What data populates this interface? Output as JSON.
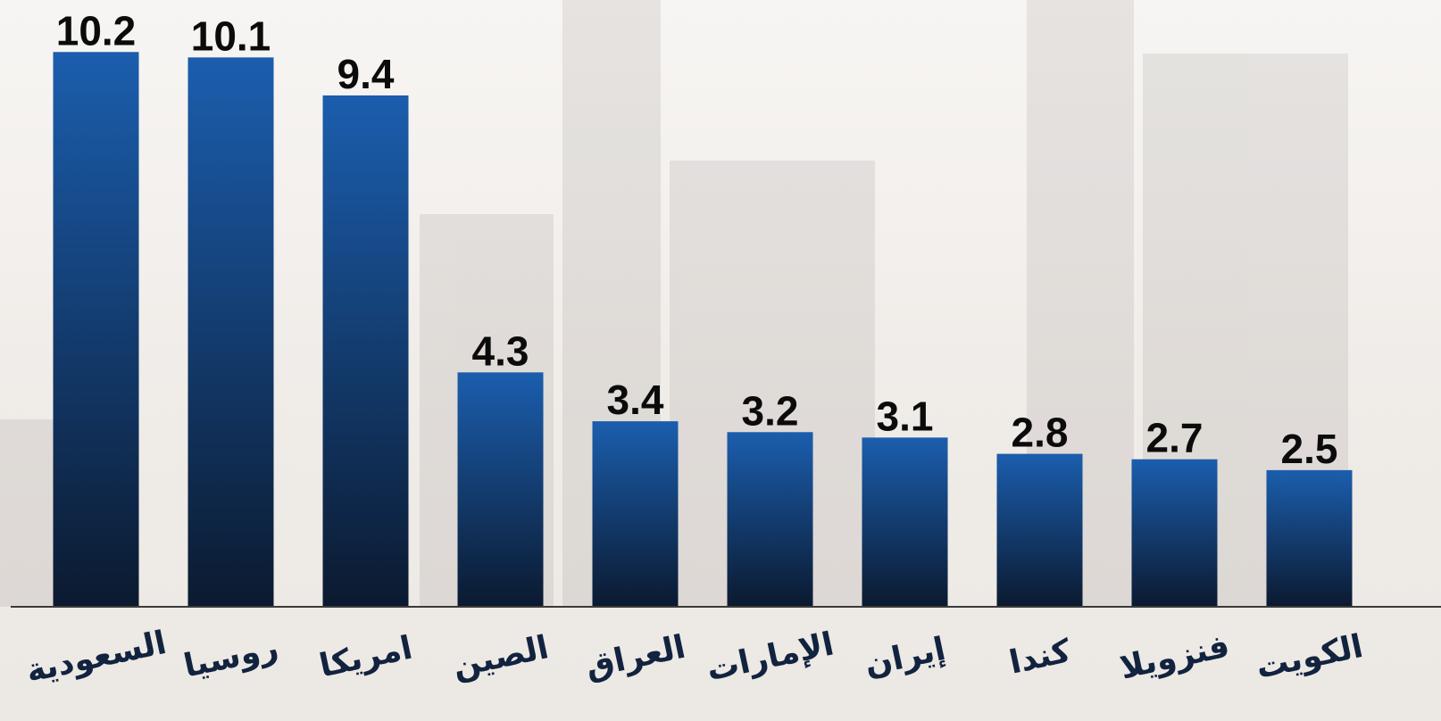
{
  "chart_data": {
    "type": "bar",
    "categories": [
      "السعودية",
      "روسيا",
      "امريكا",
      "الصين",
      "العراق",
      "الإمارات",
      "إيران",
      "كندا",
      "فنزويلا",
      "الكويت"
    ],
    "values": [
      10.2,
      10.1,
      9.4,
      4.3,
      3.4,
      3.2,
      3.1,
      2.8,
      2.7,
      2.5
    ],
    "color": "#1b5eae",
    "ylim": [
      0,
      10.5
    ]
  }
}
